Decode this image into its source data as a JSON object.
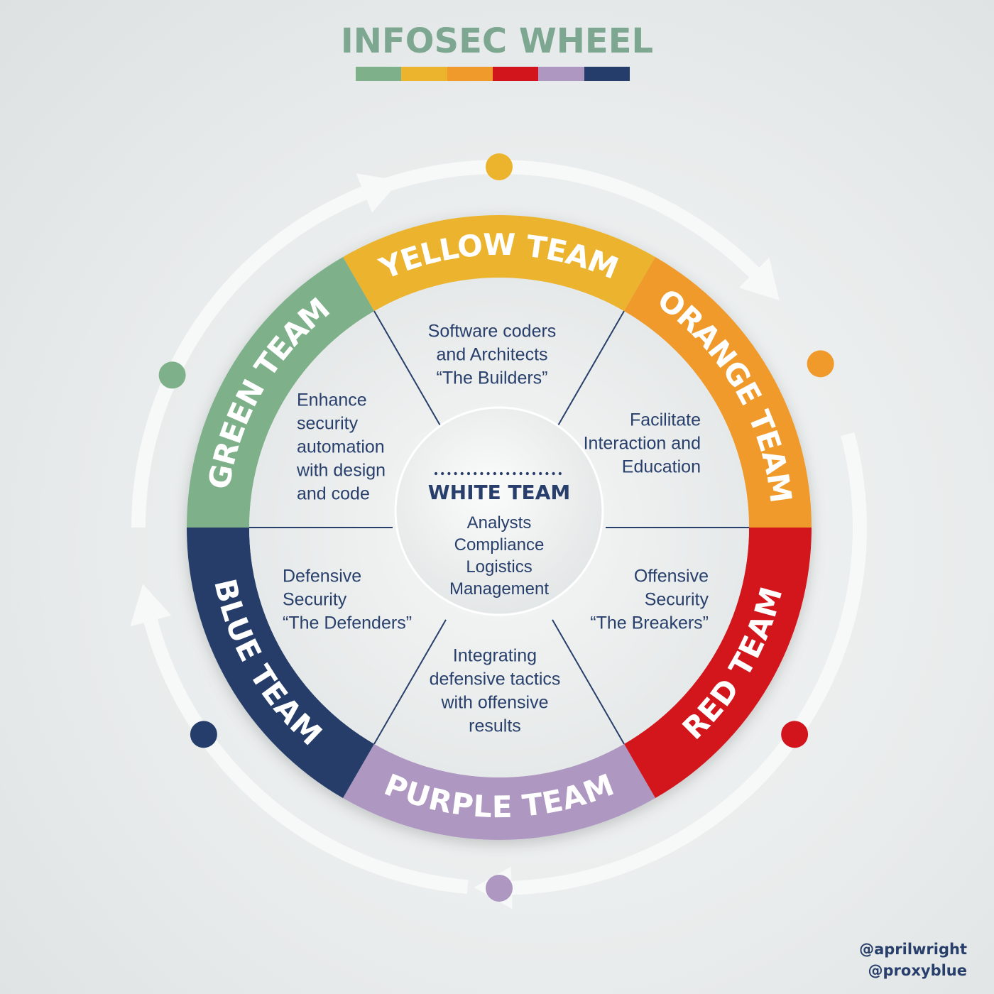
{
  "title": "INFOSEC WHEEL",
  "palette": [
    "#7eb18a",
    "#ecb32d",
    "#ef9a2a",
    "#d2151d",
    "#ae97c1",
    "#253d6b"
  ],
  "center": {
    "name": "WHITE TEAM",
    "lines": [
      "Analysts",
      "Compliance",
      "Logistics",
      "Management"
    ]
  },
  "teams": [
    {
      "id": "yellow",
      "name": "YELLOW TEAM",
      "color": "#ecb32d",
      "text_color": "#ffffff",
      "description": [
        "Software coders",
        "and Architects",
        "“The Builders”"
      ]
    },
    {
      "id": "orange",
      "name": "ORANGE TEAM",
      "color": "#ef9a2a",
      "text_color": "#ffffff",
      "description": [
        "Facilitate",
        "Interaction and",
        "Education"
      ]
    },
    {
      "id": "red",
      "name": "RED TEAM",
      "color": "#d2151d",
      "text_color": "#ffffff",
      "description": [
        "Offensive",
        "Security",
        "“The Breakers”"
      ]
    },
    {
      "id": "purple",
      "name": "PURPLE TEAM",
      "color": "#ae97c1",
      "text_color": "#ffffff",
      "description": [
        "Integrating",
        "defensive tactics",
        "with offensive",
        "results"
      ]
    },
    {
      "id": "blue",
      "name": "BLUE TEAM",
      "color": "#253d6b",
      "text_color": "#ffffff",
      "description": [
        "Defensive",
        "Security",
        "“The Defenders”"
      ]
    },
    {
      "id": "green",
      "name": "GREEN TEAM",
      "color": "#7eb18a",
      "text_color": "#ffffff",
      "description": [
        "Enhance",
        "security",
        "automation",
        "with design",
        "and code"
      ]
    }
  ],
  "text_color": "#283f6b",
  "handles": [
    "@aprilwright",
    "@proxyblue"
  ]
}
